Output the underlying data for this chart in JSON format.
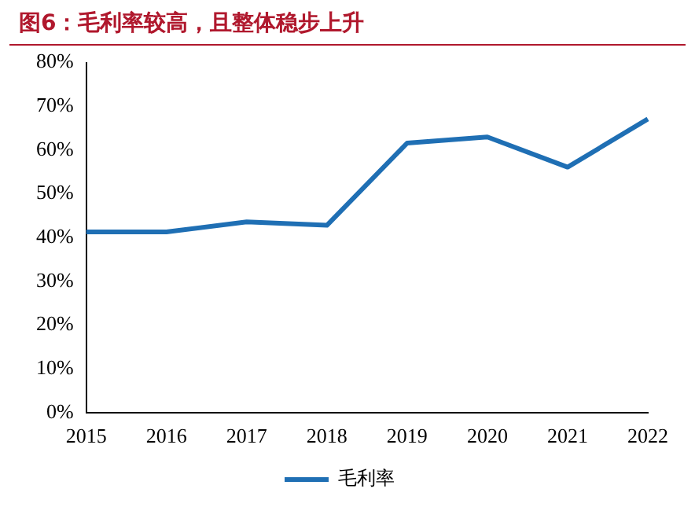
{
  "chart_data": {
    "type": "line",
    "title": "图6：毛利率较高，且整体稳步上升",
    "categories": [
      "2015",
      "2016",
      "2017",
      "2018",
      "2019",
      "2020",
      "2021",
      "2022"
    ],
    "series": [
      {
        "name": "毛利率",
        "color": "#1f6fb4",
        "values": [
          41.3,
          41.3,
          43.6,
          42.8,
          61.6,
          63.0,
          56.1,
          67.1
        ]
      }
    ],
    "ylim": [
      0,
      80
    ],
    "yticks": [
      {
        "value": 0,
        "label": "0%"
      },
      {
        "value": 10,
        "label": "10%"
      },
      {
        "value": 20,
        "label": "20%"
      },
      {
        "value": 30,
        "label": "30%"
      },
      {
        "value": 40,
        "label": "40%"
      },
      {
        "value": 50,
        "label": "50%"
      },
      {
        "value": 60,
        "label": "60%"
      },
      {
        "value": 70,
        "label": "70%"
      },
      {
        "value": 80,
        "label": "80%"
      }
    ],
    "grid": false,
    "legend": "bottom",
    "marker": "none",
    "line_style": "solid"
  }
}
